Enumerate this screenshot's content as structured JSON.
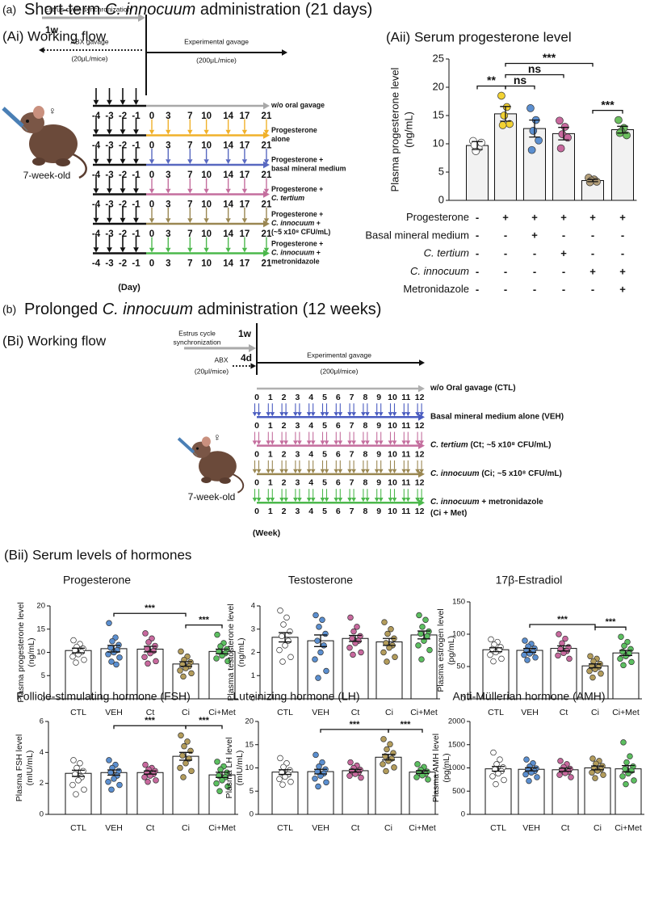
{
  "panel_a": {
    "label": "(a)",
    "title": [
      "Short-term ",
      {
        "i": "C. innocuum"
      },
      " administration (21 days)"
    ]
  },
  "flow_ai": {
    "title": "(Ai) Working flow",
    "sync": "Estrus cycle synchronization",
    "sync_duration": "1w",
    "abx": "ABX gavage",
    "abx_volume": "(20μL/mice)",
    "gavage": "Experimental gavage",
    "gavage_volume": "(200μL/mice)",
    "age": "7-week-old",
    "sex": "♀",
    "days": [
      -4,
      -3,
      -2,
      -1,
      0,
      3,
      7,
      10,
      14,
      17,
      21
    ],
    "axis": "(Day)",
    "rows": [
      {
        "color": "#a8a8a8",
        "dosed": false,
        "label": [
          [
            "w/o oral gavage"
          ]
        ]
      },
      {
        "color": "#f0b12a",
        "dosed": true,
        "label": [
          [
            "Progesterone"
          ],
          [
            "alone"
          ]
        ]
      },
      {
        "color": "#5868c0",
        "dosed": true,
        "label": [
          [
            "Progesterone +"
          ],
          [
            "basal mineral medium"
          ]
        ]
      },
      {
        "color": "#c46e9e",
        "dosed": true,
        "label": [
          [
            "Progesterone +"
          ],
          [
            {
              "i": "C. tertium"
            }
          ]
        ]
      },
      {
        "color": "#9a8752",
        "dosed": true,
        "label": [
          [
            "Progesterone +"
          ],
          [
            {
              "i": "C. innocuum"
            },
            " +"
          ],
          [
            "(~5 x10⁸ CFU/mL)"
          ]
        ]
      },
      {
        "color": "#4cb84c",
        "dosed": true,
        "label": [
          [
            "Progesterone +"
          ],
          [
            {
              "i": "C. innocuum"
            },
            " +"
          ],
          [
            "metronidazole"
          ]
        ]
      }
    ]
  },
  "panel_b": {
    "label": "(b)",
    "title": [
      "Prolonged ",
      {
        "i": "C. innocuum"
      },
      " administration (12 weeks)"
    ]
  },
  "flow_bi": {
    "title": "(Bi) Working flow",
    "sync": [
      "Estrus cycle",
      "synchronization"
    ],
    "sync_duration": "1w",
    "abx": "ABX",
    "abx_volume": "(20μl/mice)",
    "abx_duration": "4d",
    "gavage": "Experimental gavage",
    "gavage_volume": "(200μl/mice)",
    "age": "7-week-old",
    "sex": "♀",
    "weeks": [
      0,
      1,
      2,
      3,
      4,
      5,
      6,
      7,
      8,
      9,
      10,
      11,
      12
    ],
    "axis": "(Week)",
    "rows": [
      {
        "color": "#b0b0b0",
        "dosed": false,
        "label": [
          [
            "w/o Oral gavage (CTL)"
          ]
        ]
      },
      {
        "color": "#4a5cc0",
        "dosed": true,
        "label": [
          [
            "Basal mineral medium alone (VEH)"
          ]
        ]
      },
      {
        "color": "#c46e9e",
        "dosed": true,
        "label": [
          [
            {
              "i": "C. tertium"
            },
            " (Ct; ~5 x10⁸ CFU/mL)"
          ]
        ]
      },
      {
        "color": "#9a8752",
        "dosed": true,
        "label": [
          [
            {
              "i": "C. innocuum"
            },
            " (Ci; ~5 x10⁸ CFU/mL)"
          ]
        ]
      },
      {
        "color": "#4cb84c",
        "dosed": true,
        "label": [
          [
            {
              "i": "C. innocuum"
            },
            "  + metronidazole"
          ],
          [
            "(Ci + Met)"
          ]
        ]
      }
    ]
  },
  "panel_bii": {
    "title": "(Bii) Serum levels of hormones"
  },
  "chart_data": [
    {
      "type": "bar",
      "title": "(Aii) Serum progesterone level",
      "ylabel": [
        "Plasma progesterone level",
        "(ng/mL)"
      ],
      "values": [
        9.7,
        15.3,
        12.7,
        11.8,
        3.5,
        12.5
      ],
      "errors": [
        0.7,
        1.3,
        1.5,
        1.1,
        0.2,
        0.6
      ],
      "points": [
        [
          10.5,
          9.3,
          8.7,
          10.2,
          9.8
        ],
        [
          18.5,
          16.5,
          15.0,
          13.5,
          13.3
        ],
        [
          16.3,
          14.2,
          12.3,
          10.6,
          8.9
        ],
        [
          14.1,
          13.0,
          11.7,
          11.1,
          9.2
        ],
        [
          4.0,
          3.7,
          3.5,
          3.3,
          3.2
        ],
        [
          14.2,
          12.8,
          12.2,
          11.5,
          11.9
        ]
      ],
      "colors": [
        "#ffffff",
        "#f2d233",
        "#5b8fd0",
        "#c8699e",
        "#b5a07a",
        "#6cbf5f"
      ],
      "ylim": [
        0,
        25
      ],
      "yticks": [
        0,
        5,
        10,
        15,
        20,
        25
      ],
      "brackets": [
        {
          "groups": [
            0,
            1
          ],
          "label": "**"
        },
        {
          "groups": [
            1,
            2
          ],
          "label": "ns"
        },
        {
          "groups": [
            1,
            3
          ],
          "label": "ns"
        },
        {
          "groups": [
            1,
            4
          ],
          "label": "***"
        },
        {
          "groups": [
            4,
            5
          ],
          "label": "***"
        }
      ],
      "table": [
        {
          "label": [
            "Progesterone"
          ],
          "cells": [
            "-",
            "+",
            "+",
            "+",
            "+",
            "+"
          ]
        },
        {
          "label": [
            "Basal mineral medium"
          ],
          "cells": [
            "-",
            "-",
            "+",
            "-",
            "-",
            "-"
          ]
        },
        {
          "label": [
            {
              "i": "C. tertium"
            }
          ],
          "cells": [
            "-",
            "-",
            "-",
            "+",
            "-",
            "-"
          ]
        },
        {
          "label": [
            {
              "i": "C. innocuum"
            }
          ],
          "cells": [
            "-",
            "-",
            "-",
            "-",
            "+",
            "+"
          ]
        },
        {
          "label": [
            "Metronidazole"
          ],
          "cells": [
            "-",
            "-",
            "-",
            "-",
            "-",
            "+"
          ]
        }
      ]
    },
    {
      "type": "bar",
      "title": "Progesterone",
      "ylabel": [
        "Plasma progesterone level",
        "(ng/mL)"
      ],
      "categories": [
        "CTL",
        "VEH",
        "Ct",
        "Ci",
        "Ci+Met"
      ],
      "values": [
        10.4,
        10.8,
        10.7,
        7.5,
        10.2
      ],
      "errors": [
        0.5,
        0.7,
        0.6,
        0.5,
        0.5
      ],
      "points": [
        [
          12.6,
          11.8,
          11.2,
          10.8,
          10.4,
          10.1,
          9.6,
          9.1,
          8.4,
          7.8
        ],
        [
          16.3,
          13.2,
          12.4,
          11.6,
          11.0,
          10.5,
          10.0,
          9.6,
          8.9,
          8.0,
          7.4
        ],
        [
          14.1,
          13.0,
          12.2,
          11.4,
          10.8,
          10.3,
          9.8,
          9.0,
          8.1,
          7.6
        ],
        [
          10.2,
          9.1,
          8.4,
          7.9,
          7.4,
          7.0,
          6.6,
          6.1,
          5.5,
          4.8
        ],
        [
          13.8,
          12.0,
          11.3,
          10.7,
          10.2,
          9.8,
          9.3,
          8.7,
          8.1
        ]
      ],
      "colors": [
        "#ffffff",
        "#5b8fd0",
        "#c8699e",
        "#b39c5b",
        "#5cbf60"
      ],
      "ylim": [
        0,
        20
      ],
      "yticks": [
        0,
        5,
        10,
        15,
        20
      ],
      "brackets": [
        {
          "groups": [
            1,
            3
          ],
          "label": "***"
        },
        {
          "groups": [
            3,
            4
          ],
          "label": "***"
        }
      ]
    },
    {
      "type": "bar",
      "title": "Testosterone",
      "ylabel": [
        "Plasma testosterone level",
        "(ng/mL)"
      ],
      "categories": [
        "CTL",
        "VEH",
        "Ct",
        "Ci",
        "Ci+Met"
      ],
      "values": [
        2.65,
        2.5,
        2.6,
        2.45,
        2.75
      ],
      "errors": [
        0.2,
        0.25,
        0.13,
        0.15,
        0.17
      ],
      "points": [
        [
          3.8,
          3.5,
          3.2,
          2.9,
          2.7,
          2.5,
          2.3,
          2.1,
          1.8,
          1.6
        ],
        [
          3.6,
          3.4,
          3.1,
          2.8,
          2.5,
          2.3,
          2.0,
          1.7,
          1.2,
          0.9
        ],
        [
          3.5,
          3.1,
          2.9,
          2.7,
          2.6,
          2.5,
          2.4,
          2.2,
          2.0,
          1.9
        ],
        [
          3.3,
          3.0,
          2.8,
          2.6,
          2.4,
          2.3,
          2.2,
          2.0,
          1.8,
          1.6
        ],
        [
          3.6,
          3.4,
          3.1,
          2.9,
          2.8,
          2.7,
          2.5,
          2.3,
          2.1,
          1.7
        ]
      ],
      "colors": [
        "#ffffff",
        "#5b8fd0",
        "#c8699e",
        "#b39c5b",
        "#5cbf60"
      ],
      "ylim": [
        0,
        4
      ],
      "yticks": [
        0,
        1,
        2,
        3,
        4
      ],
      "brackets": []
    },
    {
      "type": "bar",
      "title": "17β-Estradiol",
      "ylabel": [
        "Plasma estrogen level",
        "(pg/mL)"
      ],
      "categories": [
        "CTL",
        "VEH",
        "Ct",
        "Ci",
        "Ci+Met"
      ],
      "values": [
        76,
        75,
        78,
        51,
        71
      ],
      "errors": [
        3,
        3,
        4,
        3,
        4
      ],
      "points": [
        [
          92,
          88,
          84,
          80,
          77,
          75,
          72,
          68,
          62,
          58
        ],
        [
          90,
          85,
          81,
          78,
          75,
          73,
          70,
          68,
          64,
          60
        ],
        [
          100,
          93,
          86,
          80,
          77,
          74,
          71,
          67,
          62
        ],
        [
          66,
          62,
          58,
          54,
          51,
          49,
          46,
          43,
          39,
          33
        ],
        [
          96,
          88,
          82,
          77,
          73,
          70,
          66,
          62,
          57,
          52
        ]
      ],
      "colors": [
        "#ffffff",
        "#5b8fd0",
        "#c8699e",
        "#b39c5b",
        "#5cbf60"
      ],
      "ylim": [
        0,
        150
      ],
      "yticks": [
        0,
        50,
        100,
        150
      ],
      "brackets": [
        {
          "groups": [
            1,
            3
          ],
          "label": "***"
        },
        {
          "groups": [
            3,
            4
          ],
          "label": "***"
        }
      ]
    },
    {
      "type": "bar",
      "title": "Follicle-stimulating hormone (FSH)",
      "ylabel": [
        "Plasma FSH level",
        "(mIU/mL)"
      ],
      "categories": [
        "CTL",
        "VEH",
        "Ct",
        "Ci",
        "Ci+Met"
      ],
      "values": [
        2.65,
        2.7,
        2.7,
        3.75,
        2.55
      ],
      "errors": [
        0.2,
        0.17,
        0.1,
        0.25,
        0.17
      ],
      "points": [
        [
          3.5,
          3.3,
          3.0,
          2.8,
          2.6,
          2.4,
          2.2,
          1.9,
          1.6,
          1.3
        ],
        [
          3.5,
          3.2,
          3.0,
          2.8,
          2.7,
          2.5,
          2.3,
          2.1,
          1.9,
          1.6
        ],
        [
          3.2,
          3.0,
          2.9,
          2.8,
          2.7,
          2.6,
          2.5,
          2.4,
          2.2,
          2.1
        ],
        [
          5.1,
          4.7,
          4.4,
          4.1,
          3.8,
          3.6,
          3.3,
          3.0,
          2.8,
          2.4
        ],
        [
          3.4,
          3.1,
          2.9,
          2.7,
          2.5,
          2.4,
          2.2,
          2.0,
          1.8,
          1.5
        ]
      ],
      "colors": [
        "#ffffff",
        "#5b8fd0",
        "#c8699e",
        "#b39c5b",
        "#5cbf60"
      ],
      "ylim": [
        0,
        6
      ],
      "yticks": [
        0,
        2,
        4,
        6
      ],
      "brackets": [
        {
          "groups": [
            1,
            3
          ],
          "label": "***"
        },
        {
          "groups": [
            3,
            4
          ],
          "label": "***"
        }
      ]
    },
    {
      "type": "bar",
      "title": "Luteinizing hormone (LH)",
      "ylabel": [
        "Plasma LH level",
        "(mIU/mL)"
      ],
      "categories": [
        "CTL",
        "VEH",
        "Ct",
        "Ci",
        "Ci+Met"
      ],
      "values": [
        9.1,
        9.2,
        9.4,
        12.3,
        9.1
      ],
      "errors": [
        0.5,
        0.5,
        0.3,
        0.6,
        0.3
      ],
      "points": [
        [
          12.1,
          11.0,
          10.2,
          9.5,
          9.0,
          8.6,
          8.1,
          7.6,
          7.0,
          6.4
        ],
        [
          12.8,
          11.2,
          10.3,
          9.7,
          9.2,
          8.8,
          8.3,
          7.7,
          6.9,
          6.0
        ],
        [
          11.2,
          10.5,
          10.0,
          9.6,
          9.3,
          9.0,
          8.7,
          8.3,
          7.9
        ],
        [
          16.2,
          15.1,
          14.0,
          13.2,
          12.5,
          12.0,
          11.5,
          10.8,
          10.1,
          9.3
        ],
        [
          10.8,
          10.2,
          9.6,
          9.2,
          9.0,
          8.7,
          8.4,
          8.0,
          7.5
        ]
      ],
      "colors": [
        "#ffffff",
        "#5b8fd0",
        "#c8699e",
        "#b39c5b",
        "#5cbf60"
      ],
      "ylim": [
        0,
        20
      ],
      "yticks": [
        0,
        5,
        10,
        15,
        20
      ],
      "brackets": [
        {
          "groups": [
            1,
            3
          ],
          "label": "***"
        },
        {
          "groups": [
            3,
            4
          ],
          "label": "***"
        }
      ]
    },
    {
      "type": "bar",
      "title": "Anti-Müllerian hormone (AMH)",
      "ylabel": [
        "Plasma AMH level",
        "(pg/mL)"
      ],
      "categories": [
        "CTL",
        "VEH",
        "Ct",
        "Ci",
        "Ci+Met"
      ],
      "values": [
        980,
        970,
        960,
        1000,
        980
      ],
      "errors": [
        50,
        35,
        35,
        40,
        70
      ],
      "points": [
        [
          1330,
          1180,
          1080,
          1010,
          970,
          930,
          880,
          820,
          740,
          650
        ],
        [
          1180,
          1100,
          1030,
          990,
          960,
          930,
          900,
          860,
          800,
          720
        ],
        [
          1150,
          1080,
          1020,
          980,
          950,
          920,
          890,
          850,
          800
        ],
        [
          1200,
          1150,
          1090,
          1040,
          1000,
          970,
          940,
          900,
          850,
          780
        ],
        [
          1550,
          1250,
          1120,
          1030,
          980,
          940,
          880,
          820,
          730,
          650
        ]
      ],
      "colors": [
        "#ffffff",
        "#5b8fd0",
        "#c8699e",
        "#b39c5b",
        "#5cbf60"
      ],
      "ylim": [
        0,
        2000
      ],
      "yticks": [
        0,
        500,
        1000,
        1500,
        2000
      ],
      "brackets": []
    }
  ]
}
